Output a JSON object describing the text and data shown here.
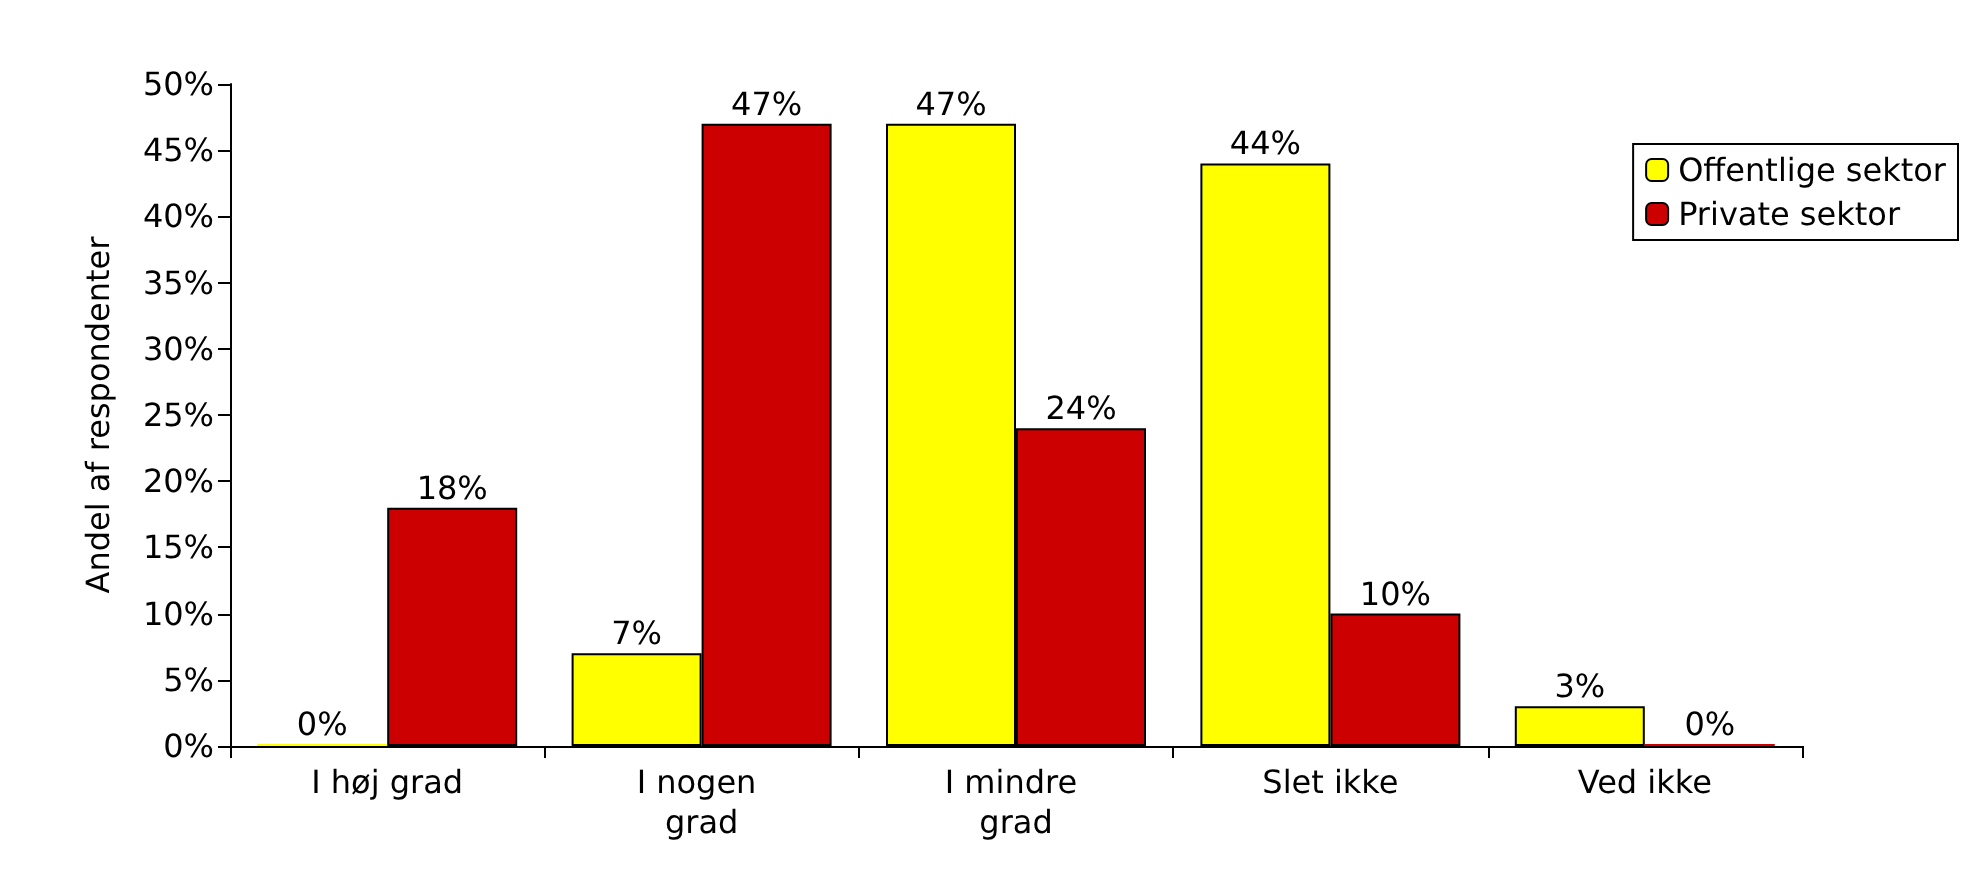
{
  "chart_data": {
    "type": "bar",
    "ylabel": "Andel af respondenter",
    "categories": [
      "I høj grad",
      "I nogen grad",
      "I mindre grad",
      "Slet ikke",
      "Ved ikke"
    ],
    "series": [
      {
        "name": "Offentlige sektor",
        "color": "#ffff00",
        "values": [
          0,
          7,
          47,
          44,
          3
        ],
        "value_labels": [
          "0%",
          "7%",
          "47%",
          "44%",
          "3%"
        ]
      },
      {
        "name": "Private sektor",
        "color": "#cc0000",
        "values": [
          18,
          47,
          24,
          10,
          0
        ],
        "value_labels": [
          "18%",
          "47%",
          "24%",
          "10%",
          "0%"
        ]
      }
    ],
    "ylim": [
      0,
      50
    ],
    "yticks": [
      {
        "value": 0,
        "label": "0%"
      },
      {
        "value": 5,
        "label": "5%"
      },
      {
        "value": 10,
        "label": "10%"
      },
      {
        "value": 15,
        "label": "15%"
      },
      {
        "value": 20,
        "label": "20%"
      },
      {
        "value": 25,
        "label": "25%"
      },
      {
        "value": 30,
        "label": "30%"
      },
      {
        "value": 35,
        "label": "35%"
      },
      {
        "value": 40,
        "label": "40%"
      },
      {
        "value": 45,
        "label": "45%"
      },
      {
        "value": 50,
        "label": "50%"
      }
    ],
    "grid": false,
    "legend": "top right"
  }
}
